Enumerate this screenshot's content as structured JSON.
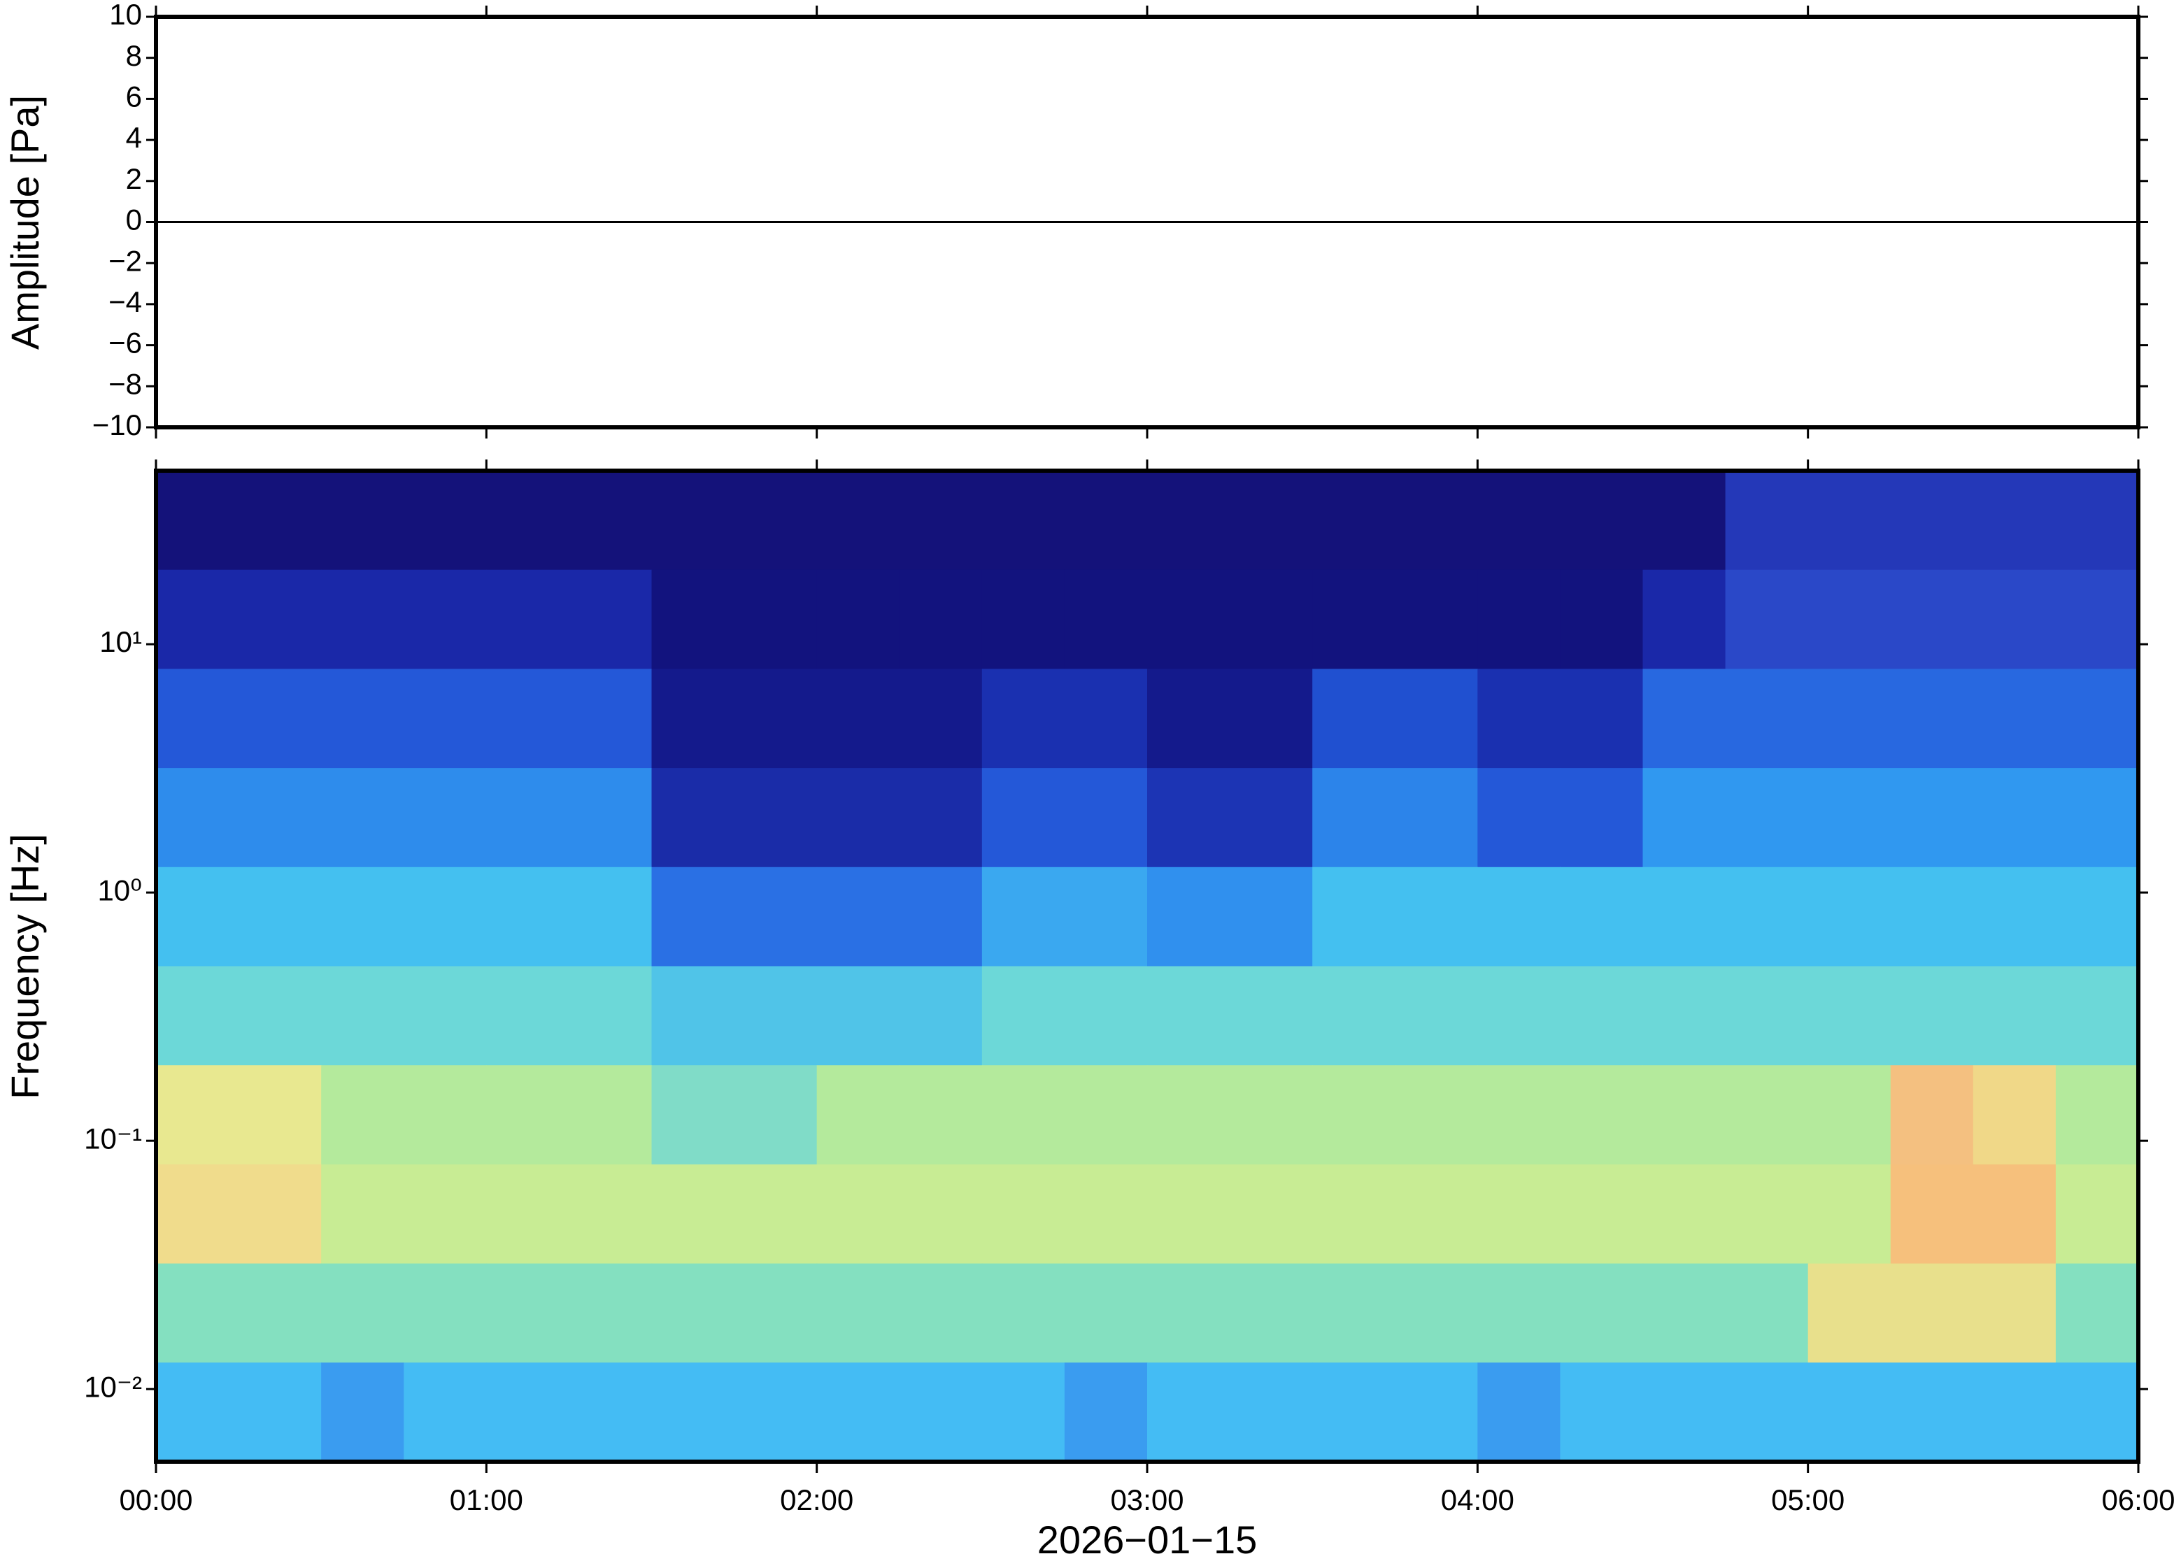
{
  "chart_data": [
    {
      "type": "line",
      "y_label": "Amplitude [Pa]",
      "x": [
        0,
        6
      ],
      "series": [
        {
          "color": "#000000",
          "values": [
            0,
            0
          ]
        }
      ],
      "xlim": [
        0,
        6
      ],
      "xticks": [
        0,
        1,
        2,
        3,
        4,
        5,
        6
      ],
      "ylim": [
        -10,
        10
      ],
      "yticks": [
        {
          "value": -10,
          "label": "−10"
        },
        {
          "value": -8,
          "label": "−8"
        },
        {
          "value": -6,
          "label": "−6"
        },
        {
          "value": -4,
          "label": "−4"
        },
        {
          "value": -2,
          "label": "−2"
        },
        0,
        2,
        4,
        6,
        8,
        10
      ]
    },
    {
      "type": "heatmap",
      "y_label": "Frequency [Hz]",
      "x_label": "2026−01−15",
      "xlim": [
        0,
        6
      ],
      "xticks": [
        {
          "value": 0,
          "label": "00:00"
        },
        {
          "value": 1,
          "label": "01:00"
        },
        {
          "value": 2,
          "label": "02:00"
        },
        {
          "value": 3,
          "label": "03:00"
        },
        {
          "value": 4,
          "label": "04:00"
        },
        {
          "value": 5,
          "label": "05:00"
        },
        {
          "value": 6,
          "label": "06:00"
        }
      ],
      "ylim": [
        0.0051,
        50
      ],
      "log_y": true,
      "yticks": [
        {
          "value": 0.01,
          "label": "10⁻²"
        },
        {
          "value": 0.1,
          "label": "10⁻¹"
        },
        {
          "value": 1,
          "label": "10⁰"
        },
        {
          "value": 10,
          "label": "10¹"
        }
      ],
      "cells": [
        [
          "#14127a",
          "#14127a",
          "#14127a",
          "#14127a",
          "#14127a",
          "#14127a",
          "#14127a",
          "#14127a",
          "#14127a",
          "#14127a",
          "#14127a",
          "#14127a",
          "#14127a",
          "#14127a",
          "#14127a",
          "#14127a",
          "#14127a",
          "#14127a",
          "#14127a",
          "#2438b8",
          "#2438b8",
          "#2438b8",
          "#2438b8",
          "#2438b8"
        ],
        [
          "#1a28a8",
          "#1a28a8",
          "#1a28a8",
          "#1a28a8",
          "#1a28a8",
          "#1a28a8",
          "#12137e",
          "#12137e",
          "#12137e",
          "#12137e",
          "#12137e",
          "#12137e",
          "#12137e",
          "#12137e",
          "#12137e",
          "#12137e",
          "#12137e",
          "#12137e",
          "#1a28a8",
          "#2a48c8",
          "#2a48c8",
          "#2a48c8",
          "#2a48c8",
          "#2a48c8"
        ],
        [
          "#2458d8",
          "#2458d8",
          "#2458d8",
          "#2458d8",
          "#2458d8",
          "#2458d8",
          "#141a8c",
          "#141a8c",
          "#141a8c",
          "#141a8c",
          "#1a30b0",
          "#1a30b0",
          "#141a8c",
          "#141a8c",
          "#2050d0",
          "#2050d0",
          "#1a30b0",
          "#1a30b0",
          "#2868e0",
          "#2868e0",
          "#2868e0",
          "#2868e0",
          "#2868e0",
          "#2868e0"
        ],
        [
          "#2e8cec",
          "#2e8cec",
          "#2e8cec",
          "#2e8cec",
          "#2e8cec",
          "#2e8cec",
          "#1a2ca8",
          "#1a2ca8",
          "#1a2ca8",
          "#1a2ca8",
          "#2458d8",
          "#2458d8",
          "#1c34b4",
          "#1c34b4",
          "#2c84ea",
          "#2c84ea",
          "#2458d8",
          "#2458d8",
          "#3098f0",
          "#3098f0",
          "#3098f0",
          "#3098f0",
          "#3098f0",
          "#3098f0"
        ],
        [
          "#44c0f0",
          "#44c0f0",
          "#44c0f0",
          "#44c0f0",
          "#44c0f0",
          "#44c0f0",
          "#2a70e4",
          "#2a70e4",
          "#2a70e4",
          "#2a70e4",
          "#3aa8f0",
          "#3aa8f0",
          "#3090ee",
          "#3090ee",
          "#44c0f0",
          "#44c0f0",
          "#44c0f0",
          "#44c0f0",
          "#44c0f0",
          "#44c0f0",
          "#44c0f0",
          "#44c0f0",
          "#44c0f0",
          "#44c0f0"
        ],
        [
          "#6cd8d8",
          "#6cd8d8",
          "#6cd8d8",
          "#6cd8d8",
          "#6cd8d8",
          "#6cd8d8",
          "#50c4e8",
          "#50c4e8",
          "#50c4e8",
          "#50c4e8",
          "#6cd8d8",
          "#6cd8d8",
          "#6cd8d8",
          "#6cd8d8",
          "#6cd8d8",
          "#6cd8d8",
          "#6cd8d8",
          "#6cd8d8",
          "#6cd8d8",
          "#6cd8d8",
          "#6cd8d8",
          "#6cd8d8",
          "#6cd8d8",
          "#6cd8d8"
        ],
        [
          "#e8e890",
          "#e8e890",
          "#b4ea9c",
          "#b4ea9c",
          "#b4ea9c",
          "#b4ea9c",
          "#80dcc8",
          "#80dcc8",
          "#b4ea9c",
          "#b4ea9c",
          "#b4ea9c",
          "#b4ea9c",
          "#b4ea9c",
          "#b4ea9c",
          "#b4ea9c",
          "#b4ea9c",
          "#b4ea9c",
          "#b4ea9c",
          "#b4ea9c",
          "#b4ea9c",
          "#b4ea9c",
          "#f4c080",
          "#f0d888",
          "#b4ea9c"
        ],
        [
          "#f0dc8c",
          "#f0dc8c",
          "#c8ec94",
          "#c8ec94",
          "#c8ec94",
          "#c8ec94",
          "#c8ec94",
          "#c8ec94",
          "#c8ec94",
          "#c8ec94",
          "#c8ec94",
          "#c8ec94",
          "#c8ec94",
          "#c8ec94",
          "#c8ec94",
          "#c8ec94",
          "#c8ec94",
          "#c8ec94",
          "#c8ec94",
          "#c8ec94",
          "#c8ec94",
          "#f6c07c",
          "#f6c07c",
          "#c8ec94"
        ],
        [
          "#84e0c0",
          "#84e0c0",
          "#84e0c0",
          "#84e0c0",
          "#84e0c0",
          "#84e0c0",
          "#84e0c0",
          "#84e0c0",
          "#84e0c0",
          "#84e0c0",
          "#84e0c0",
          "#84e0c0",
          "#84e0c0",
          "#84e0c0",
          "#84e0c0",
          "#84e0c0",
          "#84e0c0",
          "#84e0c0",
          "#84e0c0",
          "#84e0c0",
          "#e8e08c",
          "#e8e08c",
          "#e8e08c",
          "#84e0c0"
        ],
        [
          "#44bcf4",
          "#44bcf4",
          "#3a9cf0",
          "#44bcf4",
          "#44bcf4",
          "#44bcf4",
          "#44bcf4",
          "#44bcf4",
          "#44bcf4",
          "#44bcf4",
          "#44bcf4",
          "#3a9cf0",
          "#44bcf4",
          "#44bcf4",
          "#44bcf4",
          "#44bcf4",
          "#3a9cf0",
          "#44bcf4",
          "#44bcf4",
          "#44bcf4",
          "#44bcf4",
          "#44bcf4",
          "#44bcf4",
          "#44bcf4"
        ]
      ]
    }
  ]
}
